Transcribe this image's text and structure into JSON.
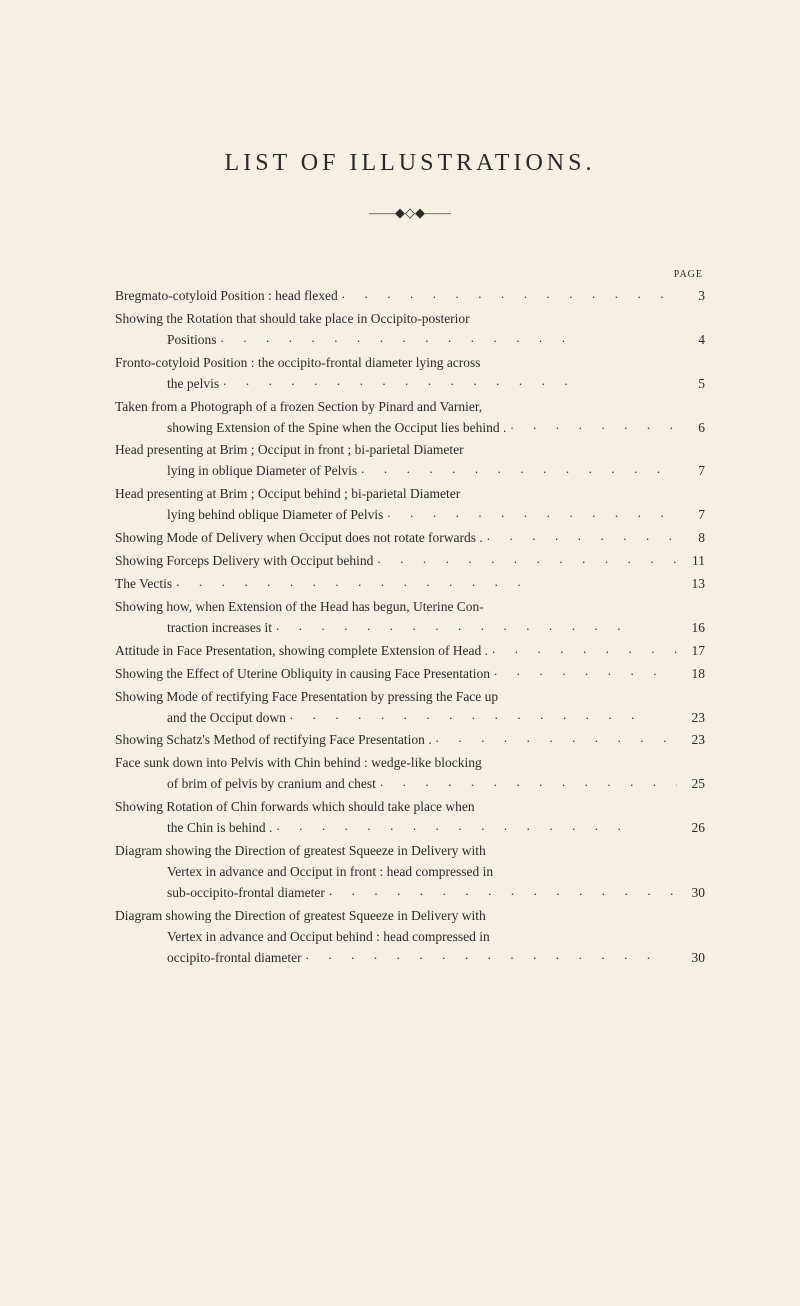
{
  "title": "LIST OF ILLUSTRATIONS.",
  "ornament": "——◆◇◆——",
  "page_header": "PAGE",
  "typography": {
    "title_fontsize": 24,
    "title_letterspacing": 4,
    "body_fontsize": 13.5,
    "header_fontsize": 10,
    "font_family": "Times New Roman",
    "background_color": "#f5f0e1",
    "text_color": "#2a2a2a",
    "line_height": 1.55,
    "continuation_indent": 52
  },
  "entries": [
    {
      "lines": [
        "Bregmato-cotyloid Position : head flexed"
      ],
      "page": "3"
    },
    {
      "lines": [
        "Showing the Rotation that should take place in Occipito-posterior",
        "Positions"
      ],
      "page": "4"
    },
    {
      "lines": [
        "Fronto-cotyloid Position : the occipito-frontal diameter lying across",
        "the pelvis"
      ],
      "page": "5"
    },
    {
      "lines": [
        "Taken from a Photograph of a frozen Section by Pinard and Varnier,",
        "showing Extension of the Spine when the Occiput lies behind ."
      ],
      "page": "6"
    },
    {
      "lines": [
        "Head presenting at Brim ; Occiput in front ; bi-parietal Diameter",
        "lying in oblique Diameter of Pelvis"
      ],
      "page": "7"
    },
    {
      "lines": [
        "Head presenting at Brim ; Occiput behind ; bi-parietal Diameter",
        "lying behind oblique Diameter of Pelvis"
      ],
      "page": "7"
    },
    {
      "lines": [
        "Showing Mode of Delivery when Occiput does not rotate forwards  ."
      ],
      "page": "8"
    },
    {
      "lines": [
        "Showing Forceps Delivery with Occiput behind"
      ],
      "page": "11"
    },
    {
      "lines": [
        "The Vectis"
      ],
      "page": "13"
    },
    {
      "lines": [
        "Showing how, when Extension of the Head has begun, Uterine Con-",
        "traction increases it"
      ],
      "page": "16"
    },
    {
      "lines": [
        "Attitude in Face Presentation, showing complete Extension of Head ."
      ],
      "page": "17"
    },
    {
      "lines": [
        "Showing the Effect of Uterine Obliquity in causing Face Presentation"
      ],
      "page": "18"
    },
    {
      "lines": [
        "Showing Mode of rectifying Face Presentation by pressing the Face up",
        "and the Occiput down"
      ],
      "page": "23"
    },
    {
      "lines": [
        "Showing Schatz's Method of rectifying Face Presentation ."
      ],
      "page": "23"
    },
    {
      "lines": [
        "Face sunk down into Pelvis with Chin behind : wedge-like blocking",
        "of brim of pelvis by cranium and chest"
      ],
      "page": "25"
    },
    {
      "lines": [
        "Showing Rotation of Chin forwards which should take place when",
        "the Chin is behind ."
      ],
      "page": "26"
    },
    {
      "lines": [
        "Diagram showing the Direction of greatest Squeeze in Delivery with",
        "Vertex in advance and Occiput in front : head compressed in",
        "sub-occipito-frontal diameter"
      ],
      "page": "30"
    },
    {
      "lines": [
        "Diagram showing the Direction of greatest Squeeze in Delivery with",
        "Vertex in advance and Occiput behind : head compressed in",
        "occipito-frontal diameter"
      ],
      "page": "30"
    }
  ]
}
